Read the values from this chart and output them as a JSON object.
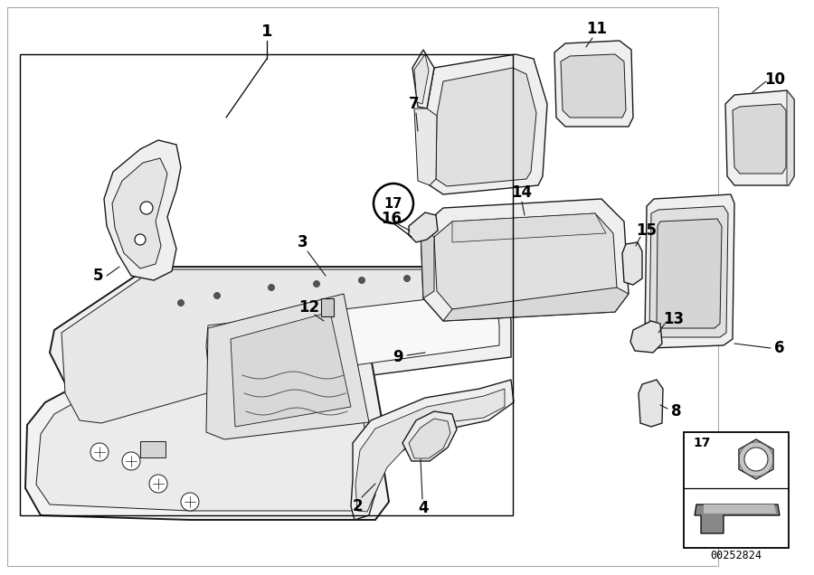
{
  "bg_color": "#ffffff",
  "lc": "#1a1a1a",
  "lc_light": "#555555",
  "fc_main": "#f5f5f5",
  "fc_part": "#eeeeee",
  "fc_dark": "#d8d8d8",
  "fc_mid": "#e5e5e5",
  "catalog_number": "00252824",
  "fig_width": 9.0,
  "fig_height": 6.36,
  "dpi": 100
}
